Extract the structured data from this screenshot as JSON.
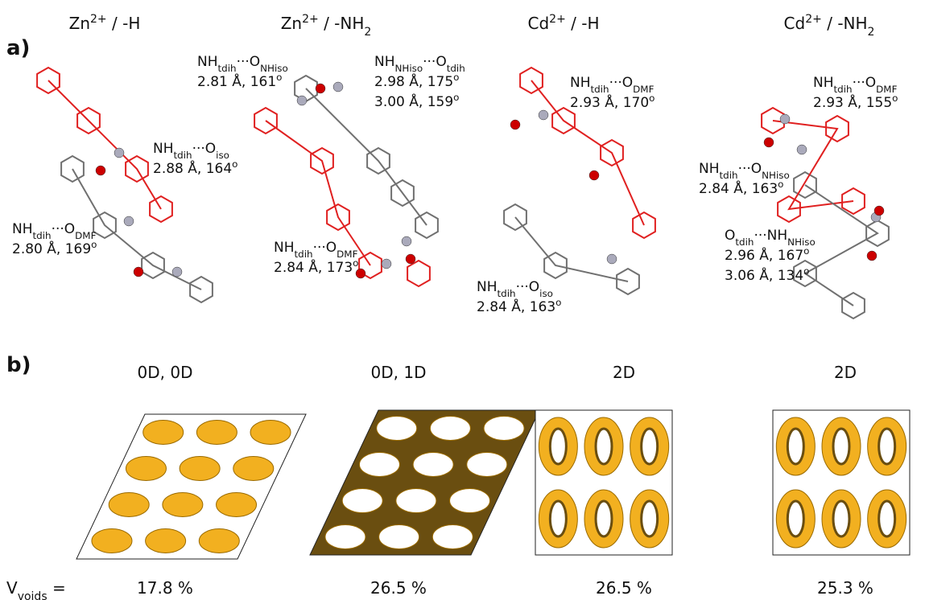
{
  "panel_a": {
    "label": "a)",
    "columns": [
      {
        "title": [
          {
            "text": "Zn"
          },
          {
            "sup": "2+"
          },
          {
            "text": " / -H"
          }
        ],
        "labels": [
          [
            [
              {
                "text": "NH"
              },
              {
                "sub": "tdih"
              },
              {
                "text": "···O"
              },
              {
                "sub": "iso"
              }
            ],
            [
              {
                "text": "2.88 Å, 164"
              },
              {
                "sup": "o"
              }
            ]
          ],
          [
            [
              {
                "text": "NH"
              },
              {
                "sub": "tdih"
              },
              {
                "text": "···O"
              },
              {
                "sub": "DMF"
              }
            ],
            [
              {
                "text": "2.80 Å, 169"
              },
              {
                "sup": "o"
              }
            ]
          ]
        ]
      },
      {
        "title": [
          {
            "text": "Zn"
          },
          {
            "sup": "2+"
          },
          {
            "text": " / -NH"
          },
          {
            "sub": "2"
          }
        ],
        "labels": [
          [
            [
              {
                "text": "NH"
              },
              {
                "sub": "tdih"
              },
              {
                "text": "···O"
              },
              {
                "sub": "NHiso"
              }
            ],
            [
              {
                "text": "2.81 Å, 161"
              },
              {
                "sup": "o"
              }
            ]
          ],
          [
            [
              {
                "text": "NH"
              },
              {
                "sub": "NHiso"
              },
              {
                "text": "···O"
              },
              {
                "sub": "tdih"
              }
            ],
            [
              {
                "text": "2.98 Å, 175"
              },
              {
                "sup": "o"
              }
            ],
            [
              {
                "text": "3.00 Å, 159"
              },
              {
                "sup": "o"
              }
            ]
          ],
          [
            [
              {
                "text": "NH"
              },
              {
                "sub": "tdih"
              },
              {
                "text": "···O"
              },
              {
                "sub": "DMF"
              }
            ],
            [
              {
                "text": "2.84 Å, 173"
              },
              {
                "sup": "o"
              }
            ]
          ]
        ]
      },
      {
        "title": [
          {
            "text": "Cd"
          },
          {
            "sup": "2+"
          },
          {
            "text": " / -H"
          }
        ],
        "labels": [
          [
            [
              {
                "text": "NH"
              },
              {
                "sub": "tdih"
              },
              {
                "text": "···O"
              },
              {
                "sub": "DMF"
              }
            ],
            [
              {
                "text": "2.93 Å, 170"
              },
              {
                "sup": "o"
              }
            ]
          ],
          [
            [
              {
                "text": "NH"
              },
              {
                "sub": "tdih"
              },
              {
                "text": "···O"
              },
              {
                "sub": "iso"
              }
            ],
            [
              {
                "text": "2.84 Å, 163"
              },
              {
                "sup": "o"
              }
            ]
          ]
        ]
      },
      {
        "title": [
          {
            "text": "Cd"
          },
          {
            "sup": "2+"
          },
          {
            "text": " / -NH"
          },
          {
            "sub": "2"
          }
        ],
        "labels": [
          [
            [
              {
                "text": "NH"
              },
              {
                "sub": "tdih"
              },
              {
                "text": "···O"
              },
              {
                "sub": "DMF"
              }
            ],
            [
              {
                "text": "2.93 Å, 155"
              },
              {
                "sup": "o"
              }
            ]
          ],
          [
            [
              {
                "text": "NH"
              },
              {
                "sub": "tdih"
              },
              {
                "text": "···O"
              },
              {
                "sub": "NHiso"
              }
            ],
            [
              {
                "text": "2.84 Å, 163"
              },
              {
                "sup": "o"
              }
            ]
          ],
          [
            [
              {
                "text": "O"
              },
              {
                "sub": "tdih"
              },
              {
                "text": "···NH"
              },
              {
                "sub": "NHiso"
              }
            ],
            [
              {
                "text": "2.96 Å, 167"
              },
              {
                "sup": "o"
              }
            ],
            [
              {
                "text": "3.06 Å, 134"
              },
              {
                "sup": "o"
              }
            ]
          ]
        ]
      }
    ]
  },
  "panel_b": {
    "label": "b)",
    "columns": [
      {
        "title": "0D, 0D",
        "void": "17.8 %"
      },
      {
        "title": "0D, 1D",
        "void": "26.5 %"
      },
      {
        "title": "2D",
        "void": "26.5 %"
      },
      {
        "title": "2D",
        "void": "25.3 %"
      }
    ],
    "void_label": [
      {
        "text": "V"
      },
      {
        "sub": "voids"
      },
      {
        "text": " ="
      }
    ]
  }
}
